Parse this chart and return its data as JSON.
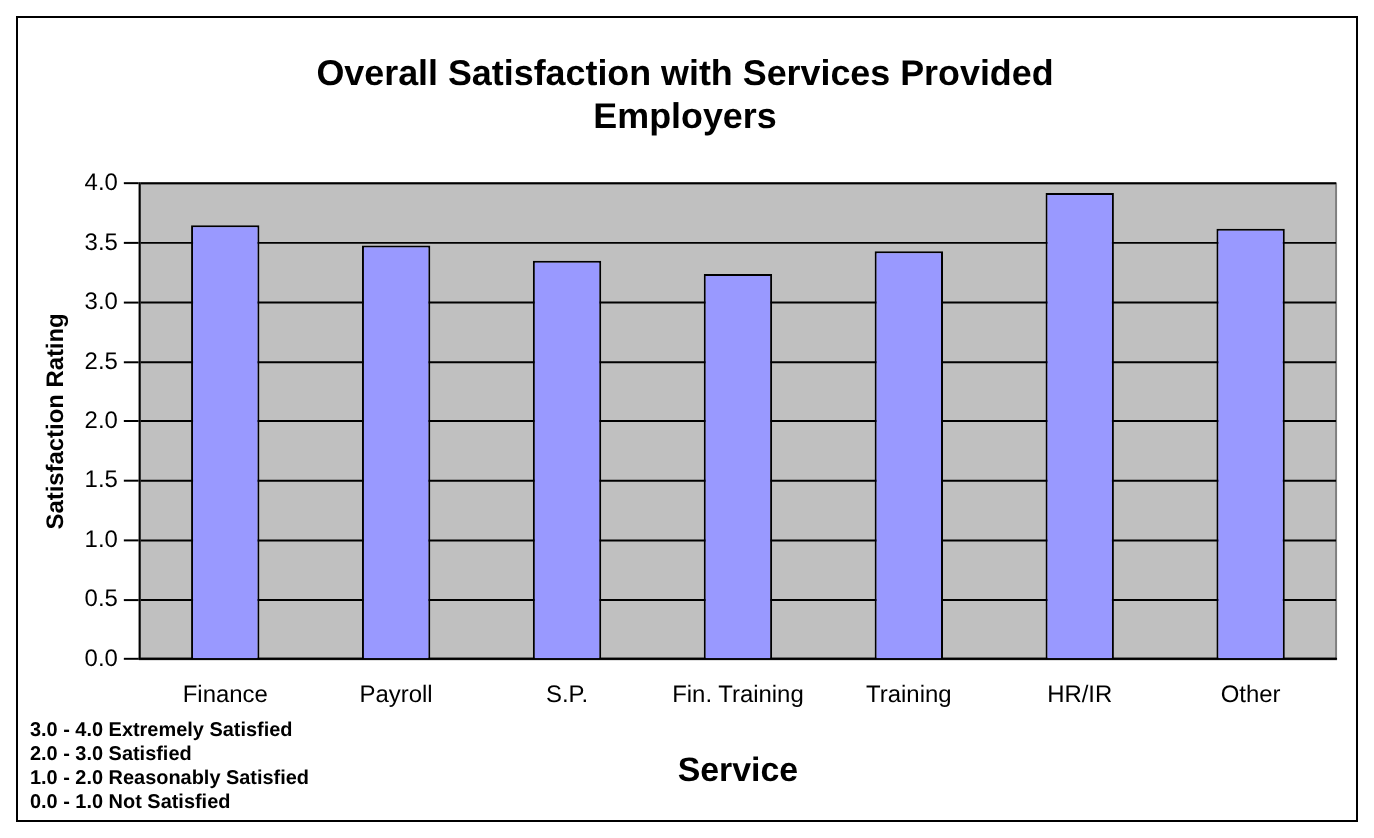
{
  "chart_data": {
    "type": "bar",
    "title": "Overall Satisfaction with Services Provided\nEmployers",
    "xlabel": "Service",
    "ylabel": "Satisfaction Rating",
    "categories": [
      "Finance",
      "Payroll",
      "S.P.",
      "Fin. Training",
      "Training",
      "HR/IR",
      "Other"
    ],
    "values": [
      3.65,
      3.48,
      3.35,
      3.24,
      3.43,
      3.92,
      3.62
    ],
    "color": "#9999ff",
    "ylim": [
      0,
      4
    ],
    "yticks": [
      {
        "value": 0,
        "label": "0.0"
      },
      0.5,
      {
        "value": 1,
        "label": "1.0"
      },
      1.5,
      {
        "value": 2,
        "label": "2.0"
      },
      2.5,
      {
        "value": 3,
        "label": "3.0"
      },
      3.5,
      {
        "value": 4,
        "label": "4.0"
      }
    ],
    "grid": "y",
    "legend": false,
    "annotations": [
      "3.0 - 4.0 Extremely Satisfied",
      "2.0 - 3.0 Satisfied",
      "1.0 - 2.0 Reasonably Satisfied",
      "0.0 - 1.0 Not Satisfied"
    ]
  }
}
